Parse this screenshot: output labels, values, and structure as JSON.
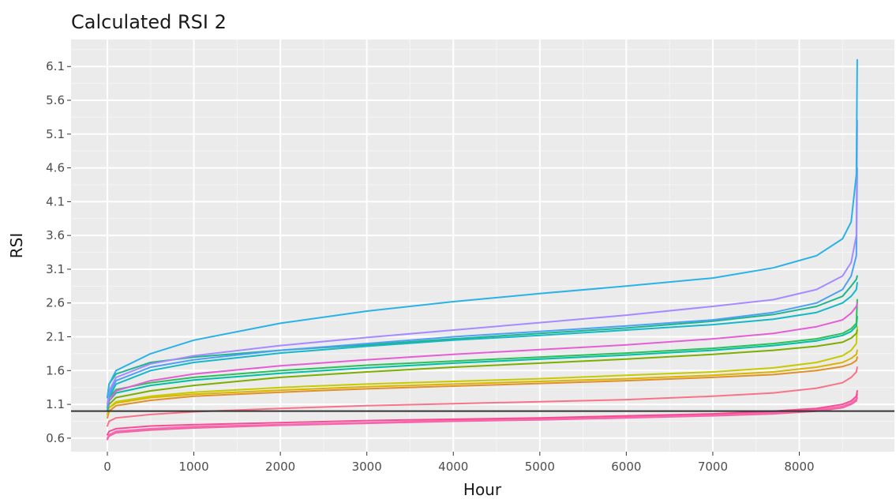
{
  "chart_data": {
    "type": "line",
    "title": "Calculated RSI 2",
    "xlabel": "Hour",
    "ylabel": "RSI",
    "xlim": [
      -420,
      9100
    ],
    "ylim": [
      0.4,
      6.5
    ],
    "x_ticks": [
      0,
      1000,
      2000,
      3000,
      4000,
      5000,
      6000,
      7000,
      8000
    ],
    "y_ticks": [
      0.6,
      1.1,
      1.6,
      2.1,
      2.6,
      3.1,
      3.6,
      4.1,
      4.6,
      5.1,
      5.6,
      6.1
    ],
    "grid": true,
    "legend": "none",
    "reference_line": {
      "y": 1.0,
      "color": "#333333"
    },
    "x": [
      0,
      20,
      100,
      500,
      1000,
      2000,
      3000,
      4000,
      5000,
      6000,
      7000,
      7700,
      8200,
      8500,
      8600,
      8660,
      8670
    ],
    "series": [
      {
        "color": "#29B2E8",
        "values": [
          1.2,
          1.4,
          1.6,
          1.85,
          2.05,
          2.3,
          2.48,
          2.62,
          2.74,
          2.85,
          2.97,
          3.12,
          3.3,
          3.55,
          3.8,
          4.5,
          6.2
        ]
      },
      {
        "color": "#A68AFF",
        "values": [
          1.1,
          1.3,
          1.5,
          1.7,
          1.82,
          1.97,
          2.09,
          2.2,
          2.31,
          2.42,
          2.55,
          2.65,
          2.8,
          3.0,
          3.2,
          3.6,
          5.3
        ]
      },
      {
        "color": "#4EA0F5",
        "values": [
          1.05,
          1.25,
          1.45,
          1.65,
          1.76,
          1.9,
          2.0,
          2.1,
          2.18,
          2.26,
          2.35,
          2.46,
          2.6,
          2.8,
          3.0,
          3.3,
          4.6
        ]
      },
      {
        "color": "#1FB58E",
        "values": [
          1.2,
          1.4,
          1.55,
          1.72,
          1.8,
          1.9,
          1.98,
          2.07,
          2.15,
          2.23,
          2.33,
          2.43,
          2.55,
          2.7,
          2.85,
          2.95,
          3.0
        ]
      },
      {
        "color": "#14B8C8",
        "values": [
          1.0,
          1.2,
          1.4,
          1.6,
          1.72,
          1.86,
          1.96,
          2.05,
          2.12,
          2.2,
          2.28,
          2.36,
          2.46,
          2.6,
          2.7,
          2.8,
          2.9
        ]
      },
      {
        "color": "#E45FD6",
        "values": [
          1.0,
          1.15,
          1.3,
          1.45,
          1.55,
          1.67,
          1.76,
          1.84,
          1.91,
          1.98,
          2.07,
          2.15,
          2.25,
          2.35,
          2.45,
          2.55,
          2.6
        ]
      },
      {
        "color": "#2CBF5A",
        "values": [
          1.05,
          1.2,
          1.32,
          1.42,
          1.5,
          1.6,
          1.68,
          1.74,
          1.8,
          1.86,
          1.93,
          2.0,
          2.07,
          2.15,
          2.22,
          2.3,
          2.65
        ]
      },
      {
        "color": "#00BFA4",
        "values": [
          1.0,
          1.15,
          1.27,
          1.38,
          1.46,
          1.56,
          1.64,
          1.71,
          1.77,
          1.83,
          1.9,
          1.97,
          2.04,
          2.12,
          2.18,
          2.26,
          2.4
        ]
      },
      {
        "color": "#7CAE00",
        "values": [
          1.0,
          1.1,
          1.2,
          1.3,
          1.38,
          1.5,
          1.58,
          1.65,
          1.71,
          1.77,
          1.84,
          1.9,
          1.96,
          2.02,
          2.08,
          2.15,
          2.2
        ]
      },
      {
        "color": "#C6CA00",
        "values": [
          0.95,
          1.05,
          1.14,
          1.22,
          1.28,
          1.35,
          1.4,
          1.44,
          1.48,
          1.53,
          1.58,
          1.64,
          1.72,
          1.82,
          1.9,
          2.0,
          2.25
        ]
      },
      {
        "color": "#D9B400",
        "values": [
          0.95,
          1.05,
          1.12,
          1.2,
          1.25,
          1.31,
          1.36,
          1.4,
          1.44,
          1.48,
          1.53,
          1.58,
          1.65,
          1.72,
          1.78,
          1.84,
          1.9
        ]
      },
      {
        "color": "#E0902A",
        "values": [
          0.9,
          1.0,
          1.08,
          1.16,
          1.22,
          1.28,
          1.33,
          1.37,
          1.41,
          1.45,
          1.5,
          1.54,
          1.6,
          1.66,
          1.7,
          1.75,
          1.8
        ]
      },
      {
        "color": "#F77488",
        "values": [
          0.78,
          0.85,
          0.9,
          0.95,
          0.99,
          1.04,
          1.08,
          1.11,
          1.14,
          1.17,
          1.22,
          1.27,
          1.34,
          1.42,
          1.5,
          1.58,
          1.65
        ]
      },
      {
        "color": "#F5508E",
        "values": [
          0.65,
          0.7,
          0.74,
          0.78,
          0.8,
          0.83,
          0.86,
          0.88,
          0.9,
          0.93,
          0.96,
          1.0,
          1.04,
          1.1,
          1.15,
          1.22,
          1.3
        ]
      },
      {
        "color": "#FF62BC",
        "values": [
          0.6,
          0.65,
          0.7,
          0.74,
          0.77,
          0.8,
          0.83,
          0.86,
          0.88,
          0.91,
          0.94,
          0.98,
          1.02,
          1.07,
          1.12,
          1.18,
          1.25
        ]
      },
      {
        "color": "#EC6A9A",
        "values": [
          0.58,
          0.63,
          0.68,
          0.72,
          0.75,
          0.79,
          0.82,
          0.85,
          0.87,
          0.9,
          0.93,
          0.96,
          1.0,
          1.05,
          1.1,
          1.15,
          1.2
        ]
      }
    ]
  }
}
